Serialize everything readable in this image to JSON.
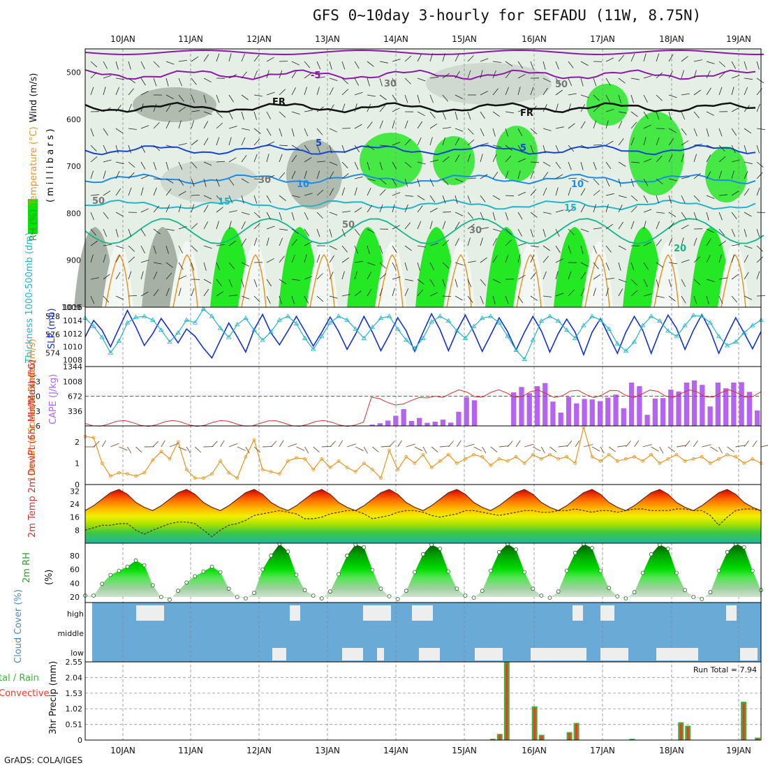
{
  "header": {
    "title": "GFS 0~10day 3-hourly for SEFADU (11W, 8.75N)"
  },
  "footer": {
    "credit": "GrADS: COLA/IGES"
  },
  "colors": {
    "rh_green": "#00e600",
    "rh_gray": "#9aa69a",
    "temp_purple": "#8c1aa6",
    "temp_blue": "#1446d2",
    "slp_blue": "#1432c8",
    "thickness_cyan": "#22b4c8",
    "cape": "#b464f0",
    "lifted_index": "#d23232",
    "wind": "#e6961e",
    "precip_total": "#3cb43c",
    "precip_conv": "#e63c28",
    "cloud_sky": "#6aaad6",
    "cloud": "#eeeeee"
  },
  "chart_data": [
    {
      "type": "heatmap",
      "id": "upper-air",
      "x_dates": [
        "10JAN",
        "11JAN",
        "12JAN",
        "13JAN",
        "14JAN",
        "15JAN",
        "16JAN",
        "17JAN",
        "18JAN",
        "19JAN"
      ],
      "ylabel_parts": [
        "Wind (m/s)",
        "Temperature (°C)",
        "RH (%)"
      ],
      "yunit": "(millibars)",
      "yticks": [
        500,
        600,
        700,
        800,
        900,
        1000
      ],
      "ylim": [
        450,
        1000
      ],
      "contour_labels": [
        "-5",
        "FR",
        "FR",
        "5",
        "5",
        "10",
        "10",
        "15",
        "15",
        "20",
        "50",
        "30",
        "30",
        "50",
        "50",
        "30"
      ],
      "isotherms": [
        {
          "label": "-5",
          "level": 505
        },
        {
          "label": "FR",
          "level": 575
        },
        {
          "label": "5",
          "level": 665
        },
        {
          "label": "10",
          "level": 727
        },
        {
          "label": "15",
          "level": 782
        }
      ]
    },
    {
      "type": "line",
      "id": "slp-thickness",
      "ylabel_left": "Thickness 1000-500mb (dm)",
      "ylabel_right": "SLP (mb)",
      "left_ticks": [
        "574",
        "576",
        "578"
      ],
      "right_ticks": [
        "1008",
        "1010",
        "1012",
        "1014",
        "1016"
      ],
      "ylim_thickness": [
        572.5,
        579
      ],
      "ylim_slp": [
        1007,
        1016
      ],
      "series": [
        {
          "values": [
            1011.5,
            1014.0,
            1012.5,
            1010.0,
            1012.8,
            1015.5,
            1013.0,
            1010.2,
            1012.0,
            1014.3,
            1012.5,
            1010.6,
            1012.7,
            1011.6,
            1009.8,
            1008.3,
            1011.0,
            1013.6,
            1011.5,
            1009.2,
            1012.6,
            1014.9,
            1012.1,
            1010.3,
            1012.4,
            1014.6,
            1012.4,
            1010.1,
            1012.2,
            1014.5,
            1012.3,
            1009.6,
            1011.9,
            1014.6,
            1012.2,
            1009.4,
            1011.8,
            1014.4,
            1012.4,
            1009.3,
            1012.2,
            1015.0,
            1012.6,
            1009.4,
            1012.4,
            1014.8,
            1012.2,
            1009.3,
            1011.8,
            1014.4,
            1012.3,
            1009.5,
            1012.2,
            1014.6,
            1012.4,
            1009.2,
            1012.0,
            1014.2,
            1012.2,
            1008.8,
            1012.2,
            1014.3,
            1011.6,
            1009.0,
            1012.2,
            1014.6,
            1012.5,
            1009.0,
            1012.3,
            1014.8,
            1012.8,
            1009.6,
            1012.5,
            1014.9,
            1012.4,
            1009.0,
            1011.8,
            1014.4,
            1012.1,
            1009.7,
            1012.3
          ]
        },
        {
          "values": [
            577.8,
            576.9,
            575.7,
            574.0,
            575.3,
            577.3,
            577.9,
            578.0,
            577.6,
            576.5,
            575.2,
            576.2,
            577.6,
            577.3,
            578.8,
            578.0,
            576.7,
            575.7,
            577.1,
            577.8,
            576.5,
            575.4,
            576.3,
            577.6,
            578.0,
            577.2,
            575.6,
            574.4,
            575.8,
            577.3,
            578.0,
            577.6,
            576.6,
            575.6,
            576.8,
            577.8,
            578.0,
            576.6,
            575.4,
            574.5,
            575.6,
            577.4,
            578.0,
            577.5,
            576.4,
            575.6,
            576.9,
            577.8,
            578.0,
            577.3,
            575.8,
            574.3,
            573.3,
            575.4,
            577.5,
            578.0,
            577.5,
            576.5,
            575.6,
            577.0,
            578.0,
            577.6,
            576.6,
            575.0,
            574.2,
            575.2,
            577.0,
            578.0,
            577.5,
            576.4,
            575.8,
            577.0,
            578.1,
            578.0,
            577.3,
            575.8,
            574.8,
            575.2,
            576.2,
            577.0,
            577.6
          ]
        }
      ]
    },
    {
      "type": "bar",
      "id": "cape-li",
      "ylabel_left": "Lifted Index",
      "ylabel_right": "CAPE (J/kg)",
      "li_ticks": [
        "-3",
        "0",
        "3",
        "6"
      ],
      "cape_ticks": [
        "336",
        "672",
        "1008",
        "1344"
      ],
      "ylim_li": [
        6,
        -6
      ],
      "ylim_cape": [
        0,
        1344
      ],
      "cape": [
        0,
        0,
        0,
        0,
        0,
        0,
        0,
        0,
        0,
        0,
        0,
        0,
        0,
        0,
        0,
        0,
        0,
        0,
        0,
        0,
        0,
        0,
        0,
        0,
        0,
        0,
        0,
        0,
        0,
        0,
        0,
        0,
        0,
        0,
        0,
        0,
        30,
        60,
        120,
        230,
        380,
        110,
        180,
        70,
        95,
        140,
        75,
        320,
        650,
        580,
        0,
        0,
        0,
        0,
        760,
        880,
        740,
        900,
        970,
        550,
        300,
        660,
        510,
        610,
        600,
        560,
        640,
        710,
        400,
        980,
        900,
        250,
        620,
        630,
        820,
        780,
        980,
        1030,
        930,
        440,
        980,
        850,
        980,
        990,
        770,
        350
      ]
    },
    {
      "type": "line",
      "id": "wind",
      "ylabel": "10m Wind Speed & Barbs (m/s)",
      "yticks": [
        "0",
        "1",
        "2"
      ],
      "ylim": [
        0,
        2.75
      ],
      "values": [
        2.25,
        2.2,
        1.0,
        0.4,
        0.55,
        0.5,
        0.4,
        0.55,
        1.15,
        1.55,
        1.2,
        2.0,
        0.7,
        0.3,
        0.3,
        0.5,
        1.1,
        0.55,
        0.3,
        1.3,
        2.1,
        0.7,
        0.6,
        0.5,
        1.1,
        1.25,
        1.2,
        0.7,
        1.2,
        0.8,
        1.1,
        0.8,
        0.6,
        1.0,
        0.7,
        0.3,
        1.6,
        0.7,
        1.3,
        1.0,
        1.4,
        0.8,
        1.1,
        1.4,
        1.0,
        1.2,
        1.4,
        1.3,
        0.9,
        1.2,
        1.1,
        1.3,
        1.0,
        1.4,
        1.2,
        1.4,
        1.2,
        1.3,
        1.0,
        2.7,
        1.3,
        1.1,
        1.4,
        1.1,
        1.2,
        1.3,
        1.1,
        1.4,
        1.0,
        1.2,
        1.4,
        1.1,
        1.2,
        1.3,
        1.0,
        1.2,
        1.4,
        1.3,
        1.0,
        1.2,
        1.0
      ]
    },
    {
      "type": "area",
      "id": "temperature",
      "ylabel": "2m Temp 2m DewPt (6hr Min/Max) (°C)",
      "yticks": [
        "8",
        "16",
        "24",
        "32"
      ],
      "ylim": [
        0,
        36
      ],
      "temp": [
        20,
        23,
        27,
        31,
        33,
        30,
        25,
        22,
        20,
        23,
        27,
        31,
        33,
        30,
        25,
        22,
        20,
        23,
        27,
        31,
        33,
        30,
        25,
        22,
        20,
        23,
        27,
        31,
        33,
        30,
        25,
        22,
        20,
        23,
        27,
        31,
        33,
        30,
        25,
        22,
        20,
        23,
        27,
        31,
        33,
        30,
        25,
        22,
        20,
        23,
        27,
        31,
        33,
        30,
        25,
        22,
        20,
        23,
        27,
        31,
        33,
        30,
        25,
        22,
        20,
        23,
        27,
        31,
        33,
        30,
        25,
        22,
        20,
        23,
        27,
        31,
        33,
        30,
        25,
        22,
        20
      ],
      "dewpoint": [
        8,
        9.5,
        11,
        11,
        12,
        12,
        8,
        5.5,
        8,
        10,
        12,
        13,
        13,
        12,
        8,
        4,
        8,
        11,
        12,
        14,
        17,
        18,
        19,
        20,
        19,
        18,
        15,
        15,
        16,
        18,
        19,
        20,
        20,
        18,
        15,
        16,
        17,
        19,
        20,
        20,
        19,
        17,
        16,
        17,
        18,
        20,
        20,
        19,
        18,
        17,
        18,
        19,
        20,
        20,
        19,
        19,
        20,
        20,
        21,
        20,
        19,
        20,
        20,
        19,
        20,
        21,
        21,
        20,
        20,
        20,
        21,
        21,
        20,
        20,
        17,
        11,
        16,
        20,
        21,
        21,
        20
      ]
    },
    {
      "type": "area",
      "id": "rh",
      "ylabel": "2m RH (%)",
      "yunit": "(%)",
      "yticks": [
        "20",
        "40",
        "60",
        "80"
      ],
      "ylim": [
        12,
        98
      ],
      "values": [
        22,
        22,
        39,
        52,
        58,
        64,
        73,
        66,
        37,
        20,
        16,
        29,
        41,
        50,
        57,
        64,
        56,
        32,
        20,
        18,
        26,
        60,
        80,
        97,
        86,
        52,
        30,
        22,
        18,
        28,
        53,
        80,
        96,
        92,
        59,
        32,
        21,
        17,
        29,
        56,
        82,
        96,
        90,
        57,
        32,
        22,
        19,
        29,
        58,
        85,
        97,
        89,
        56,
        32,
        22,
        19,
        28,
        58,
        84,
        97,
        91,
        58,
        33,
        21,
        18,
        27,
        55,
        82,
        96,
        90,
        55,
        30,
        20,
        17,
        27,
        58,
        85,
        97,
        92,
        58,
        30
      ]
    },
    {
      "type": "bar",
      "id": "cloud-cover",
      "ylabel": "Cloud Cover (%)",
      "categories": [
        "high",
        "middle",
        "low"
      ]
    },
    {
      "type": "bar",
      "id": "precip",
      "ylabel": "3hr Precip (mm)",
      "legend": [
        "tal / Rain",
        "Convective"
      ],
      "yticks": [
        "0",
        "0.51",
        "1.02",
        "1.53",
        "2.04",
        "2.55"
      ],
      "ylim": [
        0,
        2.55
      ],
      "run_total": "Run Total = 7.94",
      "total": [
        0,
        0,
        0,
        0,
        0,
        0,
        0,
        0,
        0,
        0,
        0,
        0,
        0,
        0,
        0,
        0,
        0,
        0,
        0,
        0,
        0,
        0,
        0,
        0,
        0,
        0,
        0,
        0,
        0,
        0,
        0,
        0,
        0,
        0,
        0,
        0,
        0,
        0,
        0,
        0,
        0,
        0,
        0,
        0,
        0,
        0,
        0,
        0,
        0,
        0,
        0,
        0,
        0,
        0,
        0,
        0,
        0,
        0,
        0.04,
        0.2,
        2.55,
        0,
        0,
        0,
        1.1,
        0.17,
        0,
        0,
        0,
        0.26,
        0.56,
        0,
        0,
        0,
        0,
        0,
        0,
        0,
        0.04,
        0,
        0,
        0,
        0,
        0,
        0,
        0.58,
        0.47,
        0,
        0,
        0,
        0,
        0,
        0,
        0,
        1.25,
        0,
        0.08
      ],
      "convective": [
        0,
        0,
        0,
        0,
        0,
        0,
        0,
        0,
        0,
        0,
        0,
        0,
        0,
        0,
        0,
        0,
        0,
        0,
        0,
        0,
        0,
        0,
        0,
        0,
        0,
        0,
        0,
        0,
        0,
        0,
        0,
        0,
        0,
        0,
        0,
        0,
        0,
        0,
        0,
        0,
        0,
        0,
        0,
        0,
        0,
        0,
        0,
        0,
        0,
        0,
        0,
        0,
        0,
        0,
        0,
        0,
        0,
        0,
        0.03,
        0.18,
        2.5,
        0,
        0,
        0,
        1.05,
        0.14,
        0,
        0,
        0,
        0.23,
        0.53,
        0,
        0,
        0,
        0,
        0,
        0,
        0,
        0.02,
        0,
        0,
        0,
        0,
        0,
        0,
        0.54,
        0.43,
        0,
        0,
        0,
        0,
        0,
        0,
        0,
        1.2,
        0,
        0.06
      ]
    }
  ]
}
